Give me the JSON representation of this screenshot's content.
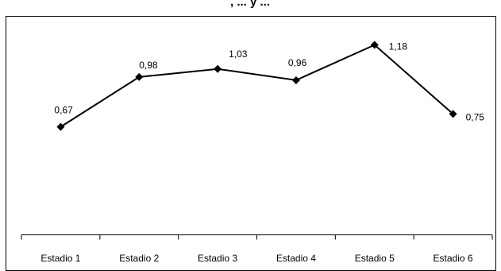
{
  "chart_data": {
    "type": "line",
    "title_fragment": ", ... y ...",
    "categories": [
      "Estadio 1",
      "Estadio 2",
      "Estadio 3",
      "Estadio 4",
      "Estadio 5",
      "Estadio 6"
    ],
    "values": [
      0.67,
      0.98,
      1.03,
      0.96,
      1.18,
      0.75
    ],
    "data_labels": [
      "0,67",
      "0,98",
      "1,03",
      "0,96",
      "1,18",
      "0,75"
    ],
    "ylim": [
      0,
      1.4
    ],
    "grid": false,
    "legend": false,
    "line_color": "#000000",
    "marker": "diamond"
  }
}
